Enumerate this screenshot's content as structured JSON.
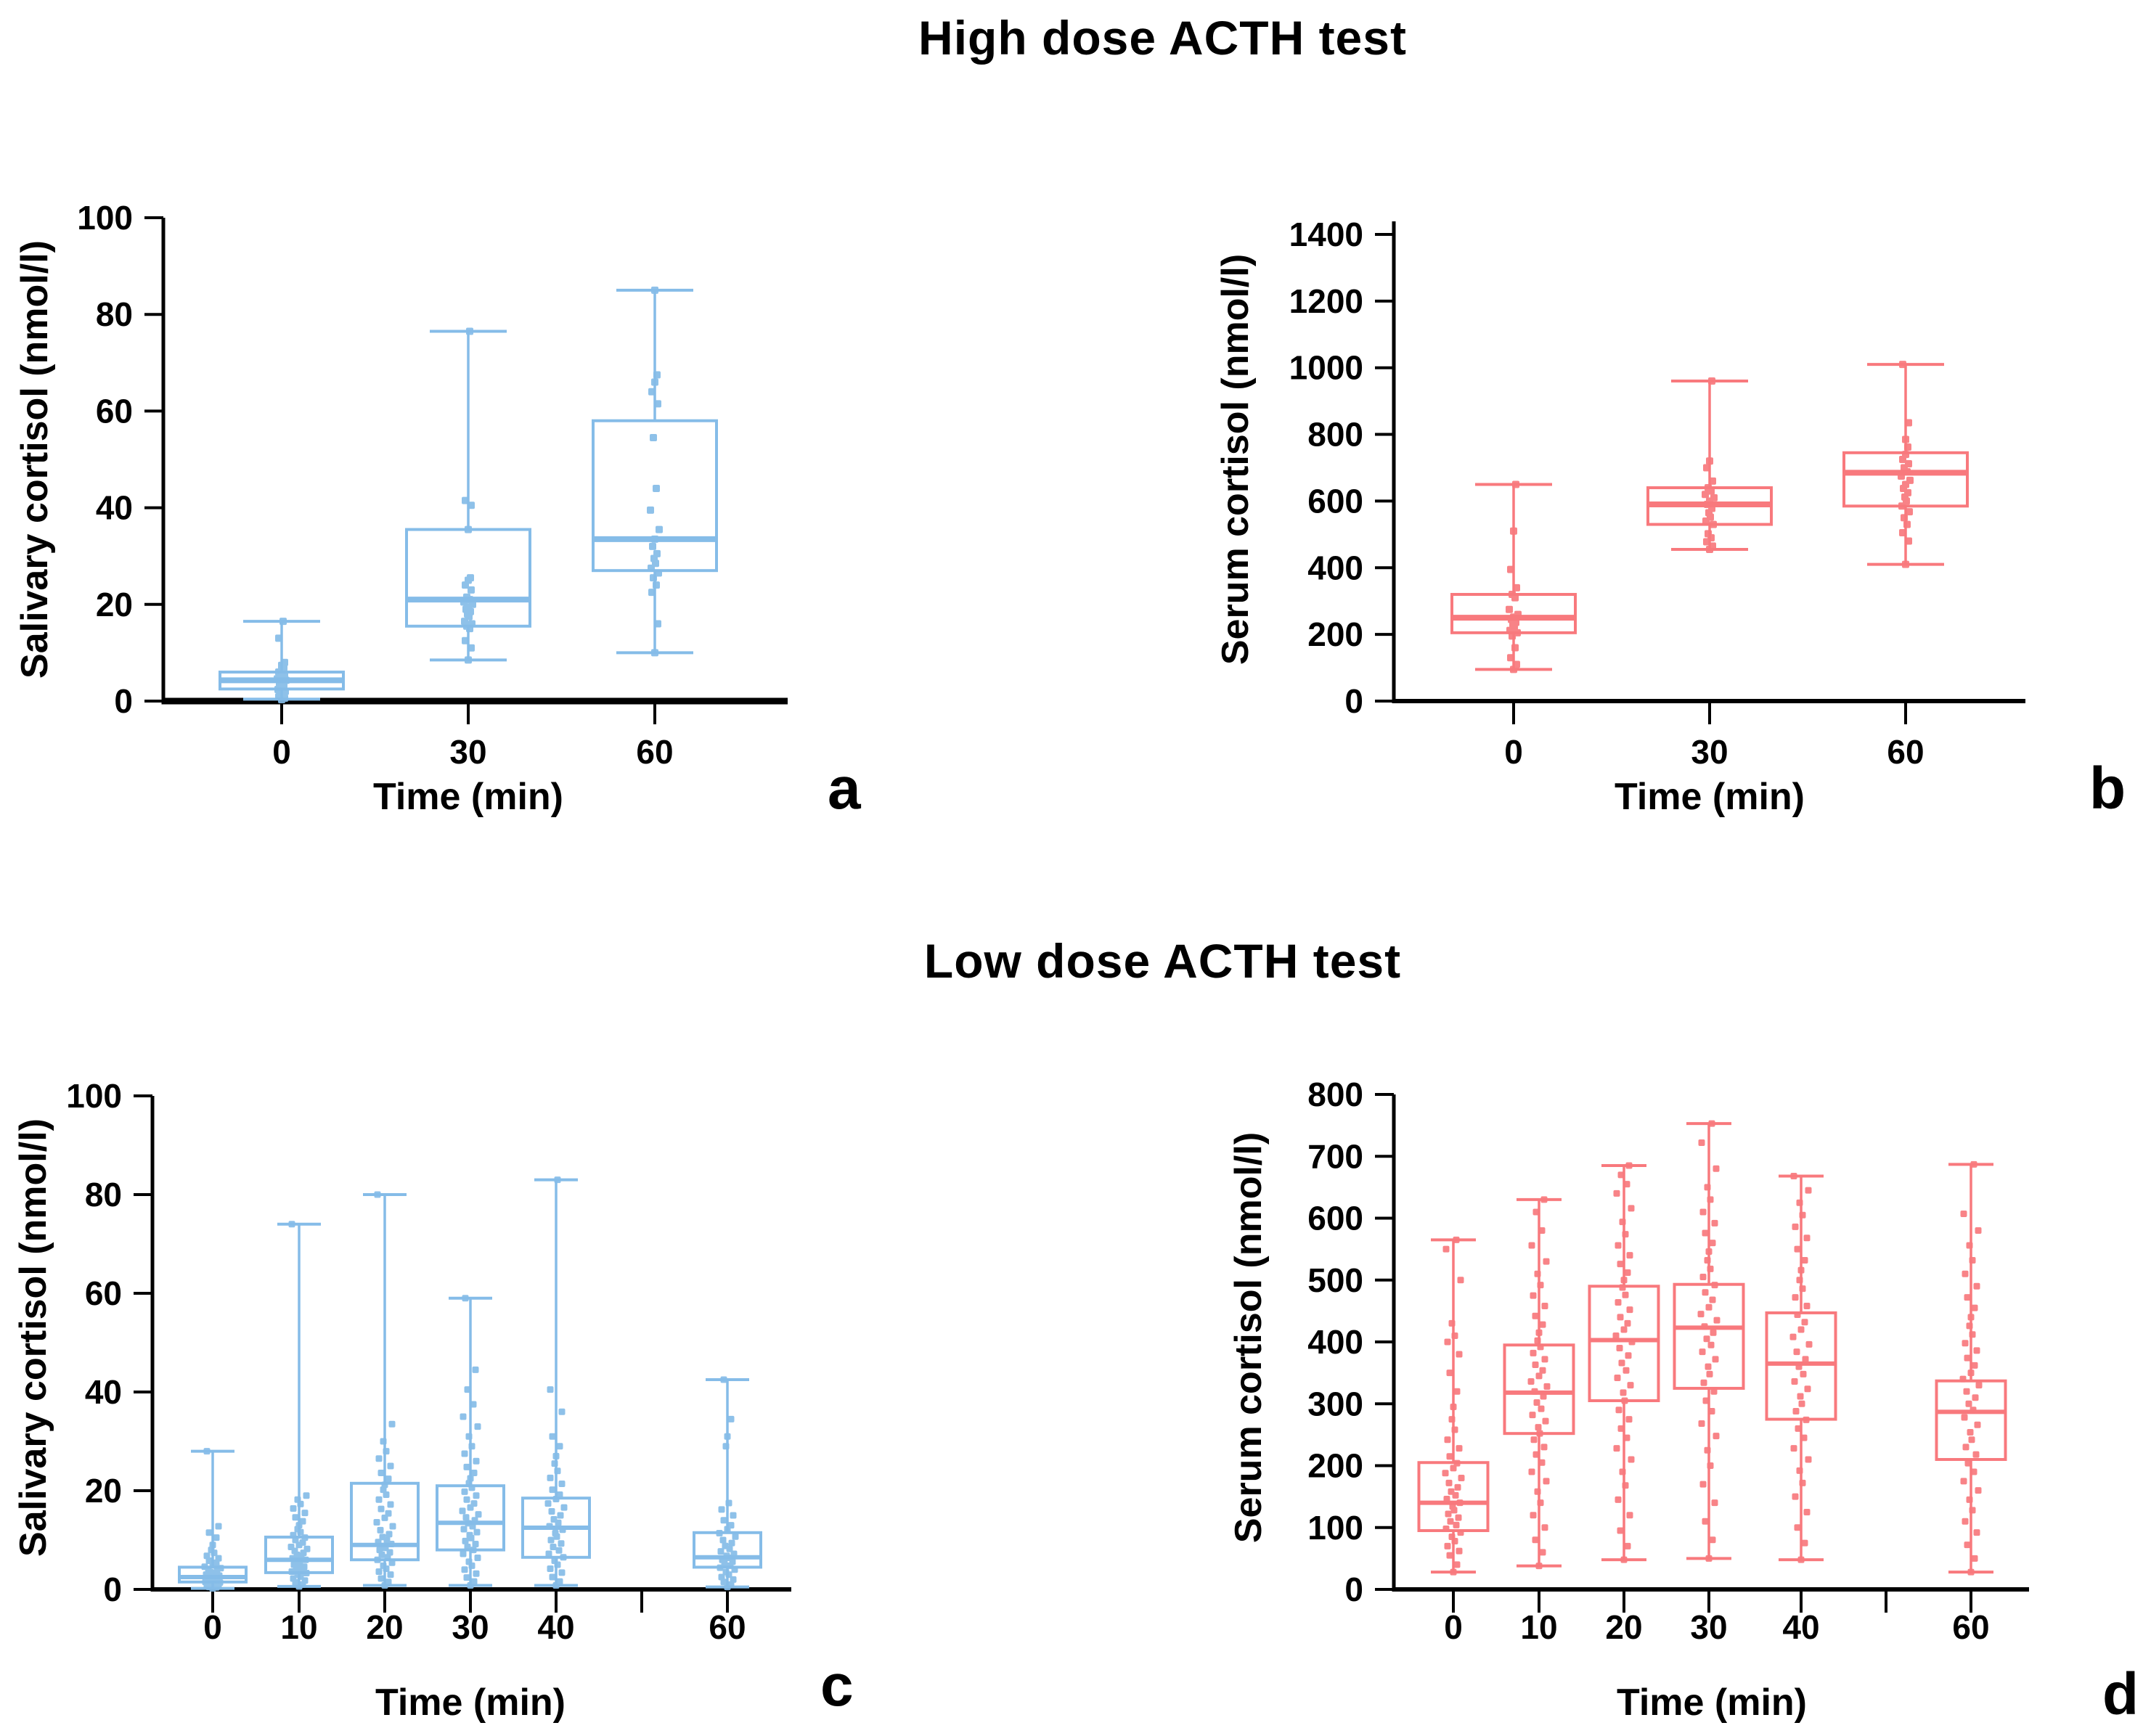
{
  "sections": [
    {
      "title": "High dose ACTH test",
      "panel_ids": [
        "a",
        "b"
      ]
    },
    {
      "title": "Low dose ACTH test",
      "panel_ids": [
        "c",
        "d"
      ]
    }
  ],
  "colors": {
    "salivary_blue": "#85BCE8",
    "serum_pink": "#F8797D",
    "axis_black": "#000000"
  },
  "chart_data": [
    {
      "id": "a",
      "letter": "a",
      "type": "box",
      "section": "High dose ACTH test",
      "title": "",
      "ylabel": "Salivary cortisol (nmol/l)",
      "xlabel": "Time (min)",
      "color": "#85BCE8",
      "ylim": [
        0,
        100
      ],
      "yticks": [
        0,
        20,
        40,
        60,
        80,
        100
      ],
      "categories": [
        0,
        30,
        60
      ],
      "cat_labels": [
        "0",
        "30",
        "60"
      ],
      "grid": false,
      "legend": null,
      "boxes": [
        {
          "x": 0,
          "whislo": 0.4,
          "q1": 2.5,
          "med": 4.3,
          "q3": 6,
          "whishi": 16.5,
          "points": [
            0.3,
            0.6,
            0.9,
            1.2,
            1.6,
            2,
            2.4,
            2.8,
            3.1,
            3.4,
            3.7,
            4,
            4.3,
            4.6,
            4.9,
            5.2,
            5.6,
            6,
            6.4,
            6.9,
            7.4,
            8,
            13,
            16.5
          ]
        },
        {
          "x": 30,
          "whislo": 8.5,
          "q1": 15.5,
          "med": 21,
          "q3": 35.5,
          "whishi": 76.5,
          "points": [
            8.5,
            11,
            12.5,
            15,
            15.5,
            16,
            16.5,
            17.5,
            18,
            18.5,
            19,
            19.5,
            20,
            20.5,
            21,
            21.5,
            23,
            24,
            25,
            25.5,
            35.5,
            40.5,
            41.5,
            76.5
          ]
        },
        {
          "x": 60,
          "whislo": 10,
          "q1": 27,
          "med": 33.5,
          "q3": 58,
          "whishi": 85,
          "points": [
            10,
            16,
            22.5,
            24,
            25.5,
            26.5,
            27.5,
            28.5,
            29.5,
            30.5,
            32,
            33.5,
            35.5,
            39.5,
            44,
            54.5,
            61.5,
            64,
            66,
            67.5,
            85
          ]
        }
      ]
    },
    {
      "id": "b",
      "letter": "b",
      "type": "box",
      "section": "High dose ACTH test",
      "title": "",
      "ylabel": "Serum cortisol (nmol/l)",
      "xlabel": "Time (min)",
      "color": "#F8797D",
      "ylim": [
        0,
        1450
      ],
      "yticks": [
        0,
        200,
        400,
        600,
        800,
        1000,
        1200,
        1400
      ],
      "categories": [
        0,
        30,
        60
      ],
      "cat_labels": [
        "0",
        "30",
        "60"
      ],
      "grid": false,
      "legend": null,
      "boxes": [
        {
          "x": 0,
          "whislo": 95,
          "q1": 205,
          "med": 250,
          "q3": 320,
          "whishi": 650,
          "points": [
            95,
            110,
            130,
            160,
            195,
            205,
            212,
            220,
            228,
            236,
            245,
            252,
            260,
            275,
            310,
            320,
            340,
            395,
            510,
            650
          ]
        },
        {
          "x": 30,
          "whislo": 455,
          "q1": 530,
          "med": 590,
          "q3": 640,
          "whishi": 960,
          "points": [
            455,
            465,
            478,
            490,
            502,
            530,
            540,
            552,
            565,
            578,
            590,
            600,
            610,
            620,
            630,
            640,
            660,
            700,
            720,
            960
          ]
        },
        {
          "x": 60,
          "whislo": 410,
          "q1": 585,
          "med": 685,
          "q3": 745,
          "whishi": 1010,
          "points": [
            410,
            480,
            505,
            530,
            550,
            568,
            585,
            600,
            612,
            625,
            638,
            650,
            662,
            675,
            688,
            700,
            712,
            725,
            740,
            762,
            785,
            835,
            1010
          ]
        }
      ]
    },
    {
      "id": "c",
      "letter": "c",
      "type": "box",
      "section": "Low dose ACTH test",
      "title": "",
      "ylabel": "Salivary cortisol (nmol/l)",
      "xlabel": "Time (min)",
      "color": "#85BCE8",
      "ylim": [
        0,
        100
      ],
      "yticks": [
        0,
        20,
        40,
        60,
        80,
        100
      ],
      "categories": [
        0,
        10,
        20,
        30,
        40,
        60
      ],
      "cat_labels": [
        "0",
        "10",
        "20",
        "30",
        "40",
        "",
        "60"
      ],
      "grid": false,
      "legend": null,
      "boxes": [
        {
          "x": 0,
          "whislo": 0.2,
          "q1": 1.5,
          "med": 2.5,
          "q3": 4.5,
          "whishi": 28,
          "points": [
            0.2,
            0.4,
            0.5,
            0.7,
            0.9,
            1,
            1.2,
            1.4,
            1.5,
            1.7,
            1.9,
            2,
            2.2,
            2.4,
            2.6,
            2.8,
            3,
            3.2,
            3.5,
            3.7,
            4,
            4.3,
            4.6,
            5,
            5.4,
            5.8,
            6.3,
            6.8,
            7.4,
            8,
            9,
            10.5,
            11.5,
            12.8,
            28
          ]
        },
        {
          "x": 10,
          "whislo": 0.6,
          "q1": 3.4,
          "med": 6,
          "q3": 10.6,
          "whishi": 74,
          "points": [
            0.6,
            1,
            1.4,
            1.8,
            2.2,
            2.6,
            3,
            3.3,
            3.6,
            4,
            4.3,
            4.6,
            5,
            5.3,
            5.6,
            6,
            6.3,
            6.7,
            7,
            7.4,
            7.8,
            8.2,
            8.6,
            9,
            9.5,
            10,
            10.5,
            11,
            11.6,
            12.2,
            13,
            13.8,
            14.6,
            15.5,
            16.4,
            17.3,
            18.2,
            19,
            74
          ]
        },
        {
          "x": 20,
          "whislo": 0.8,
          "q1": 6,
          "med": 9,
          "q3": 21.5,
          "whishi": 80,
          "points": [
            0.8,
            1.5,
            2.2,
            3,
            3.6,
            4.2,
            4.8,
            5.4,
            6,
            6.5,
            7,
            7.5,
            8,
            8.4,
            8.8,
            9.2,
            9.6,
            10,
            10.6,
            11.2,
            12,
            12.8,
            13.6,
            14.5,
            15.4,
            16.3,
            17.2,
            18.2,
            19.2,
            20.2,
            21.2,
            22.4,
            23.6,
            25,
            26.5,
            28,
            30,
            33.5,
            80
          ]
        },
        {
          "x": 30,
          "whislo": 0.8,
          "q1": 8,
          "med": 13.5,
          "q3": 21,
          "whishi": 59,
          "points": [
            0.8,
            1.6,
            2.4,
            3.2,
            4,
            4.8,
            5.6,
            6.4,
            7.2,
            8,
            8.6,
            9.2,
            9.8,
            10.4,
            11,
            11.6,
            12.2,
            12.8,
            13.4,
            14,
            14.6,
            15.2,
            15.9,
            16.6,
            17.4,
            18.2,
            19,
            19.8,
            20.6,
            21.5,
            22.5,
            23.6,
            24.8,
            26,
            27.5,
            29,
            31,
            33,
            35,
            37.5,
            40.5,
            44.5,
            59
          ]
        },
        {
          "x": 40,
          "whislo": 0.8,
          "q1": 6.5,
          "med": 12.5,
          "q3": 18.5,
          "whishi": 83,
          "points": [
            0.8,
            1.6,
            2.5,
            3.4,
            4.2,
            5,
            5.8,
            6.5,
            7.2,
            7.9,
            8.6,
            9.3,
            10,
            10.7,
            11.4,
            12.1,
            12.8,
            13.5,
            14.2,
            15,
            15.8,
            16.6,
            17.4,
            18.3,
            19.2,
            20.2,
            21.4,
            22.6,
            24,
            25.5,
            27,
            29,
            31,
            36,
            40.5,
            83
          ]
        },
        {
          "x": 60,
          "whislo": 0.5,
          "q1": 4.5,
          "med": 6.5,
          "q3": 11.5,
          "whishi": 42.5,
          "points": [
            0.5,
            1,
            1.5,
            2,
            2.5,
            3,
            3.5,
            4,
            4.4,
            4.8,
            5.2,
            5.6,
            6,
            6.4,
            6.8,
            7.2,
            7.7,
            8.2,
            8.8,
            9.4,
            10,
            10.7,
            11.4,
            12.2,
            13,
            14,
            15,
            16.2,
            17.5,
            29,
            31,
            34.5,
            42.5
          ]
        }
      ]
    },
    {
      "id": "d",
      "letter": "d",
      "type": "box",
      "section": "Low dose ACTH test",
      "title": "",
      "ylabel": "Serum cortisol (nmol/l)",
      "xlabel": "Time (min)",
      "color": "#F8797D",
      "ylim": [
        0,
        800
      ],
      "yticks": [
        0,
        100,
        200,
        300,
        400,
        500,
        600,
        700,
        800
      ],
      "categories": [
        0,
        10,
        20,
        30,
        40,
        60
      ],
      "cat_labels": [
        "0",
        "10",
        "20",
        "30",
        "40",
        "",
        "60"
      ],
      "grid": false,
      "legend": null,
      "boxes": [
        {
          "x": 0,
          "whislo": 28,
          "q1": 95,
          "med": 140,
          "q3": 205,
          "whishi": 565,
          "points": [
            28,
            40,
            55,
            62,
            70,
            78,
            85,
            92,
            98,
            104,
            110,
            116,
            122,
            128,
            134,
            140,
            146,
            152,
            158,
            165,
            172,
            180,
            188,
            196,
            204,
            215,
            228,
            242,
            258,
            275,
            295,
            320,
            350,
            380,
            400,
            410,
            430,
            500,
            550,
            565
          ]
        },
        {
          "x": 10,
          "whislo": 38,
          "q1": 252,
          "med": 318,
          "q3": 395,
          "whishi": 630,
          "points": [
            38,
            60,
            80,
            100,
            120,
            140,
            158,
            175,
            190,
            205,
            218,
            230,
            242,
            252,
            262,
            272,
            282,
            292,
            302,
            312,
            320,
            328,
            336,
            345,
            354,
            363,
            372,
            382,
            392,
            402,
            415,
            428,
            442,
            458,
            475,
            492,
            510,
            530,
            556,
            580,
            610,
            630
          ]
        },
        {
          "x": 20,
          "whislo": 48,
          "q1": 305,
          "med": 403,
          "q3": 490,
          "whishi": 685,
          "points": [
            48,
            70,
            95,
            120,
            145,
            168,
            190,
            210,
            228,
            245,
            260,
            275,
            290,
            305,
            318,
            330,
            342,
            354,
            366,
            378,
            390,
            400,
            410,
            420,
            430,
            440,
            452,
            464,
            476,
            488,
            500,
            512,
            526,
            540,
            556,
            574,
            594,
            616,
            640,
            655,
            670,
            685
          ]
        },
        {
          "x": 30,
          "whislo": 50,
          "q1": 325,
          "med": 423,
          "q3": 493,
          "whishi": 753,
          "points": [
            50,
            80,
            110,
            140,
            170,
            200,
            225,
            248,
            268,
            288,
            305,
            320,
            334,
            348,
            360,
            372,
            384,
            395,
            405,
            415,
            425,
            435,
            445,
            456,
            468,
            480,
            492,
            505,
            518,
            532,
            546,
            560,
            576,
            592,
            610,
            630,
            650,
            680,
            722,
            753
          ]
        },
        {
          "x": 40,
          "whislo": 48,
          "q1": 275,
          "med": 365,
          "q3": 447,
          "whishi": 668,
          "points": [
            48,
            75,
            100,
            125,
            150,
            172,
            192,
            210,
            228,
            245,
            260,
            274,
            288,
            300,
            312,
            324,
            336,
            348,
            360,
            372,
            384,
            396,
            408,
            420,
            432,
            444,
            458,
            472,
            486,
            500,
            516,
            532,
            550,
            568,
            586,
            605,
            625,
            645,
            668
          ]
        },
        {
          "x": 60,
          "whislo": 28,
          "q1": 210,
          "med": 287,
          "q3": 337,
          "whishi": 687,
          "points": [
            28,
            50,
            72,
            92,
            110,
            128,
            145,
            160,
            175,
            190,
            204,
            218,
            230,
            242,
            254,
            266,
            278,
            290,
            300,
            310,
            320,
            330,
            340,
            350,
            362,
            374,
            386,
            398,
            412,
            426,
            440,
            455,
            472,
            490,
            510,
            532,
            556,
            580,
            607,
            687
          ]
        }
      ]
    }
  ]
}
